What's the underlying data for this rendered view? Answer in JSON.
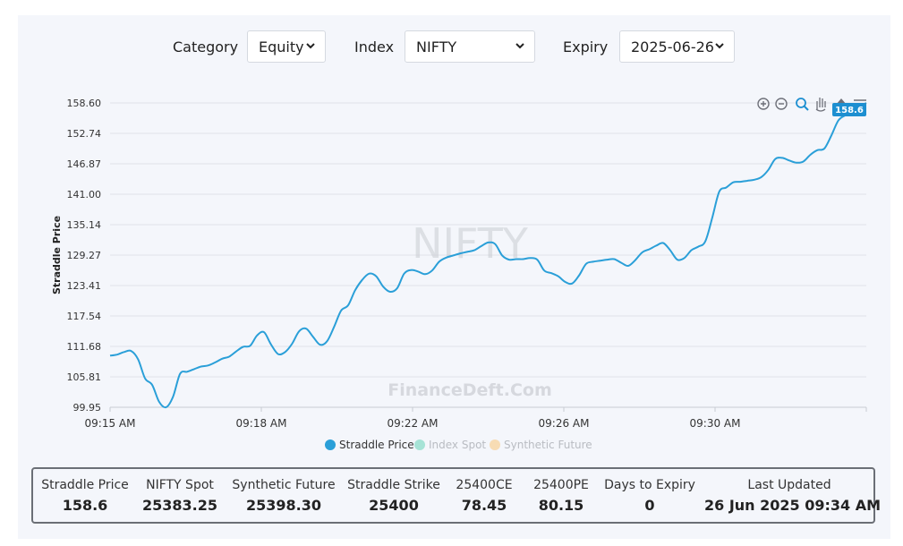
{
  "filters": {
    "category_label": "Category",
    "category_value": "Equity",
    "index_label": "Index",
    "index_value": "NIFTY",
    "expiry_label": "Expiry",
    "expiry_value": "2025-06-26"
  },
  "watermarks": {
    "center": "NIFTY",
    "brand": "FinanceDeft.Com"
  },
  "tooltip_value": "158.6",
  "chart_data": {
    "type": "line",
    "ylabel": "Straddle Price",
    "xlabel": "",
    "ylim": [
      99.95,
      158.6
    ],
    "yticks": [
      "158.60",
      "152.74",
      "146.87",
      "141.00",
      "135.14",
      "129.27",
      "123.41",
      "117.54",
      "111.68",
      "105.81",
      "99.95"
    ],
    "xticks": [
      "09:15 AM",
      "09:18 AM",
      "09:22 AM",
      "09:26 AM",
      "09:30 AM"
    ],
    "grid": true,
    "legend_position": "bottom-center",
    "series": [
      {
        "name": "Straddle Price",
        "color": "#2a9fd8",
        "active": true,
        "values": [
          109.9,
          110.1,
          110.6,
          110.8,
          109.2,
          105.5,
          104.3,
          101.0,
          99.95,
          102.0,
          106.4,
          106.8,
          107.3,
          107.8,
          108.0,
          108.6,
          109.3,
          109.7,
          110.7,
          111.6,
          111.8,
          113.8,
          114.4,
          112.0,
          110.2,
          110.6,
          112.2,
          114.6,
          115.1,
          113.5,
          112.0,
          112.7,
          115.5,
          118.6,
          119.6,
          122.5,
          124.5,
          125.7,
          125.2,
          123.2,
          122.2,
          122.9,
          125.7,
          126.4,
          126.1,
          125.6,
          126.3,
          128.0,
          128.8,
          129.2,
          129.6,
          129.9,
          130.2,
          131.0,
          131.7,
          131.4,
          129.2,
          128.4,
          128.5,
          128.5,
          128.7,
          128.4,
          126.3,
          125.8,
          125.2,
          124.1,
          123.8,
          125.4,
          127.6,
          128.0,
          128.2,
          128.4,
          128.5,
          127.8,
          127.2,
          128.3,
          129.8,
          130.4,
          131.1,
          131.6,
          130.2,
          128.4,
          128.7,
          130.2,
          130.9,
          131.9,
          136.5,
          141.5,
          142.3,
          143.3,
          143.4,
          143.6,
          143.8,
          144.3,
          145.7,
          147.8,
          148.0,
          147.5,
          147.1,
          147.3,
          148.6,
          149.5,
          149.8,
          152.3,
          155.2,
          156.2,
          156.6,
          157.8,
          158.6
        ]
      },
      {
        "name": "Index Spot",
        "color": "#a6e3d6",
        "active": false,
        "values": []
      },
      {
        "name": "Synthetic Future",
        "color": "#f7dcb4",
        "active": false,
        "values": []
      }
    ]
  },
  "summary": [
    {
      "label": "Straddle Price",
      "value": "158.6"
    },
    {
      "label": "NIFTY Spot",
      "value": "25383.25"
    },
    {
      "label": "Synthetic Future",
      "value": "25398.30"
    },
    {
      "label": "Straddle Strike",
      "value": "25400"
    },
    {
      "label": "25400CE",
      "value": "78.45"
    },
    {
      "label": "25400PE",
      "value": "80.15"
    },
    {
      "label": "Days to Expiry",
      "value": "0"
    },
    {
      "label": "Last Updated",
      "value": "26 Jun 2025 09:34 AM"
    }
  ],
  "toolbar_icons": [
    "zoom-in-icon",
    "zoom-out-icon",
    "search-zoom-icon",
    "pan-hand-icon",
    "home-icon",
    "menu-icon"
  ]
}
